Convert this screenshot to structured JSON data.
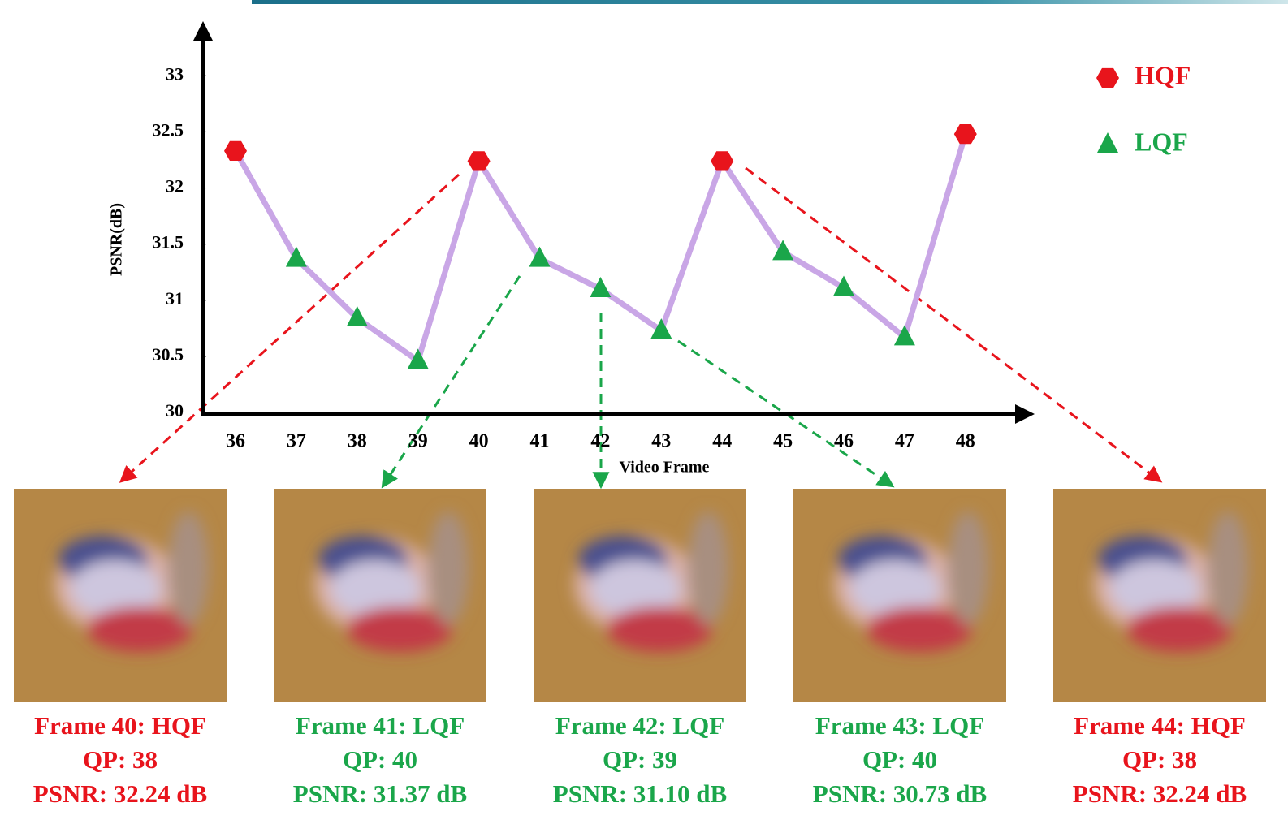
{
  "chart_data": {
    "type": "line",
    "x_label": "Video Frame",
    "y_label": "PSNR(dB)",
    "categories": [
      "36",
      "37",
      "38",
      "39",
      "40",
      "41",
      "42",
      "43",
      "44",
      "45",
      "46",
      "47",
      "48"
    ],
    "line_color": "#c9a6e6",
    "series": [
      {
        "name": "HQF",
        "color": "#e8141c",
        "marker": "hexagon",
        "values": [
          32.33,
          null,
          null,
          null,
          32.24,
          null,
          null,
          null,
          32.24,
          null,
          null,
          null,
          32.48
        ]
      },
      {
        "name": "LQF",
        "color": "#1aa64a",
        "marker": "triangle",
        "values": [
          null,
          31.37,
          30.84,
          30.46,
          null,
          31.37,
          31.1,
          30.73,
          null,
          31.43,
          31.11,
          30.67,
          null
        ]
      }
    ],
    "ylim": [
      30,
      33.4
    ],
    "yticks": [
      30,
      30.5,
      31,
      31.5,
      32,
      32.5,
      33
    ],
    "grid": false,
    "legend": "top-right"
  },
  "panels": [
    {
      "color": "#e8141c",
      "lines": [
        "Frame 40: HQF",
        "QP: 38",
        "PSNR: 32.24 dB"
      ]
    },
    {
      "color": "#1aa64a",
      "lines": [
        "Frame 41: LQF",
        "QP: 40",
        "PSNR: 31.37 dB"
      ]
    },
    {
      "color": "#1aa64a",
      "lines": [
        "Frame 42: LQF",
        "QP: 39",
        "PSNR: 31.10 dB"
      ]
    },
    {
      "color": "#1aa64a",
      "lines": [
        "Frame 43: LQF",
        "QP: 40",
        "PSNR: 30.73 dB"
      ]
    },
    {
      "color": "#e8141c",
      "lines": [
        "Frame 44: HQF",
        "QP: 38",
        "PSNR: 32.24 dB"
      ]
    }
  ]
}
